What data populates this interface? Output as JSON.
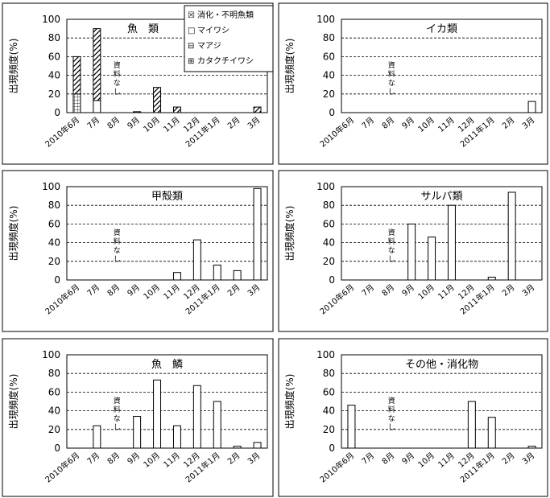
{
  "chart_data": [
    {
      "type": "bar",
      "title": "魚　類",
      "ylabel": "出現頻度(%)",
      "ylim": [
        0,
        100
      ],
      "yticks": [
        "0",
        "20",
        "40",
        "60",
        "80",
        "100"
      ],
      "categories": [
        "2010年6月",
        "7月",
        "8月",
        "9月",
        "10月",
        "11月",
        "12月",
        "2011年1月",
        "2月",
        "3月"
      ],
      "stacked": true,
      "no_data_label": "資料なし",
      "series": [
        {
          "name": "カタクチイワシ",
          "pattern": "grid",
          "values": [
            20,
            0,
            0,
            0,
            0,
            0,
            0,
            0,
            0,
            0
          ]
        },
        {
          "name": "マアジ",
          "pattern": "hlines",
          "values": [
            0,
            0,
            0,
            0,
            0,
            0,
            0,
            0,
            0,
            0
          ]
        },
        {
          "name": "マイワシ",
          "pattern": "plain",
          "values": [
            0,
            13,
            0,
            0,
            0,
            0,
            0,
            0,
            0,
            0
          ]
        },
        {
          "name": "消化・不明魚類",
          "pattern": "diagonal",
          "values": [
            40,
            77,
            0,
            1,
            27,
            6,
            0,
            0,
            0,
            6
          ]
        }
      ],
      "legend": {
        "position": "top-right",
        "items": [
          {
            "symbol": "☒",
            "label": "消化・不明魚類"
          },
          {
            "symbol": "□",
            "label": "マイワシ"
          },
          {
            "symbol": "⊟",
            "label": "マアジ"
          },
          {
            "symbol": "⊞",
            "label": "カタクチイワシ"
          }
        ]
      }
    },
    {
      "type": "bar",
      "title": "イカ類",
      "ylabel": "出現頻度(%)",
      "ylim": [
        0,
        100
      ],
      "yticks": [
        "0",
        "20",
        "40",
        "60",
        "80",
        "100"
      ],
      "categories": [
        "2010年6月",
        "7月",
        "8月",
        "9月",
        "10月",
        "11月",
        "12月",
        "2011年1月",
        "2月",
        "3月"
      ],
      "no_data_label": "資料なし",
      "values": [
        0,
        0,
        0,
        0,
        0,
        0,
        0,
        0,
        0,
        12
      ]
    },
    {
      "type": "bar",
      "title": "甲殻類",
      "ylabel": "出現頻度(%)",
      "ylim": [
        0,
        100
      ],
      "yticks": [
        "0",
        "20",
        "40",
        "60",
        "80",
        "100"
      ],
      "categories": [
        "2010年6月",
        "7月",
        "8月",
        "9月",
        "10月",
        "11月",
        "12月",
        "2011年1月",
        "2月",
        "3月"
      ],
      "no_data_label": "資料なし",
      "values": [
        0,
        0,
        0,
        0,
        0,
        8,
        43,
        16,
        10,
        98
      ]
    },
    {
      "type": "bar",
      "title": "サルパ類",
      "ylabel": "出現頻度(%)",
      "ylim": [
        0,
        100
      ],
      "yticks": [
        "0",
        "20",
        "40",
        "60",
        "80",
        "100"
      ],
      "categories": [
        "2010年6月",
        "7月",
        "8月",
        "9月",
        "10月",
        "11月",
        "12月",
        "2011年1月",
        "2月",
        "3月"
      ],
      "no_data_label": "資料なし",
      "values": [
        0,
        0,
        0,
        60,
        46,
        80,
        0,
        3,
        94,
        0
      ]
    },
    {
      "type": "bar",
      "title": "魚　鱗",
      "ylabel": "出現頻度(%)",
      "ylim": [
        0,
        100
      ],
      "yticks": [
        "0",
        "20",
        "40",
        "60",
        "80",
        "100"
      ],
      "categories": [
        "2010年6月",
        "7月",
        "8月",
        "9月",
        "10月",
        "11月",
        "12月",
        "2011年1月",
        "2月",
        "3月"
      ],
      "no_data_label": "資料なし",
      "values": [
        0,
        24,
        0,
        34,
        73,
        24,
        67,
        50,
        2,
        6
      ]
    },
    {
      "type": "bar",
      "title": "その他・消化物",
      "ylabel": "出現頻度(%)",
      "ylim": [
        0,
        100
      ],
      "yticks": [
        "0",
        "20",
        "40",
        "60",
        "80",
        "100"
      ],
      "categories": [
        "2010年6月",
        "7月",
        "8月",
        "9月",
        "10月",
        "11月",
        "12月",
        "2011年1月",
        "2月",
        "3月"
      ],
      "no_data_label": "資料なし",
      "values": [
        46,
        0,
        0,
        0,
        0,
        0,
        50,
        33,
        0,
        2
      ]
    }
  ]
}
